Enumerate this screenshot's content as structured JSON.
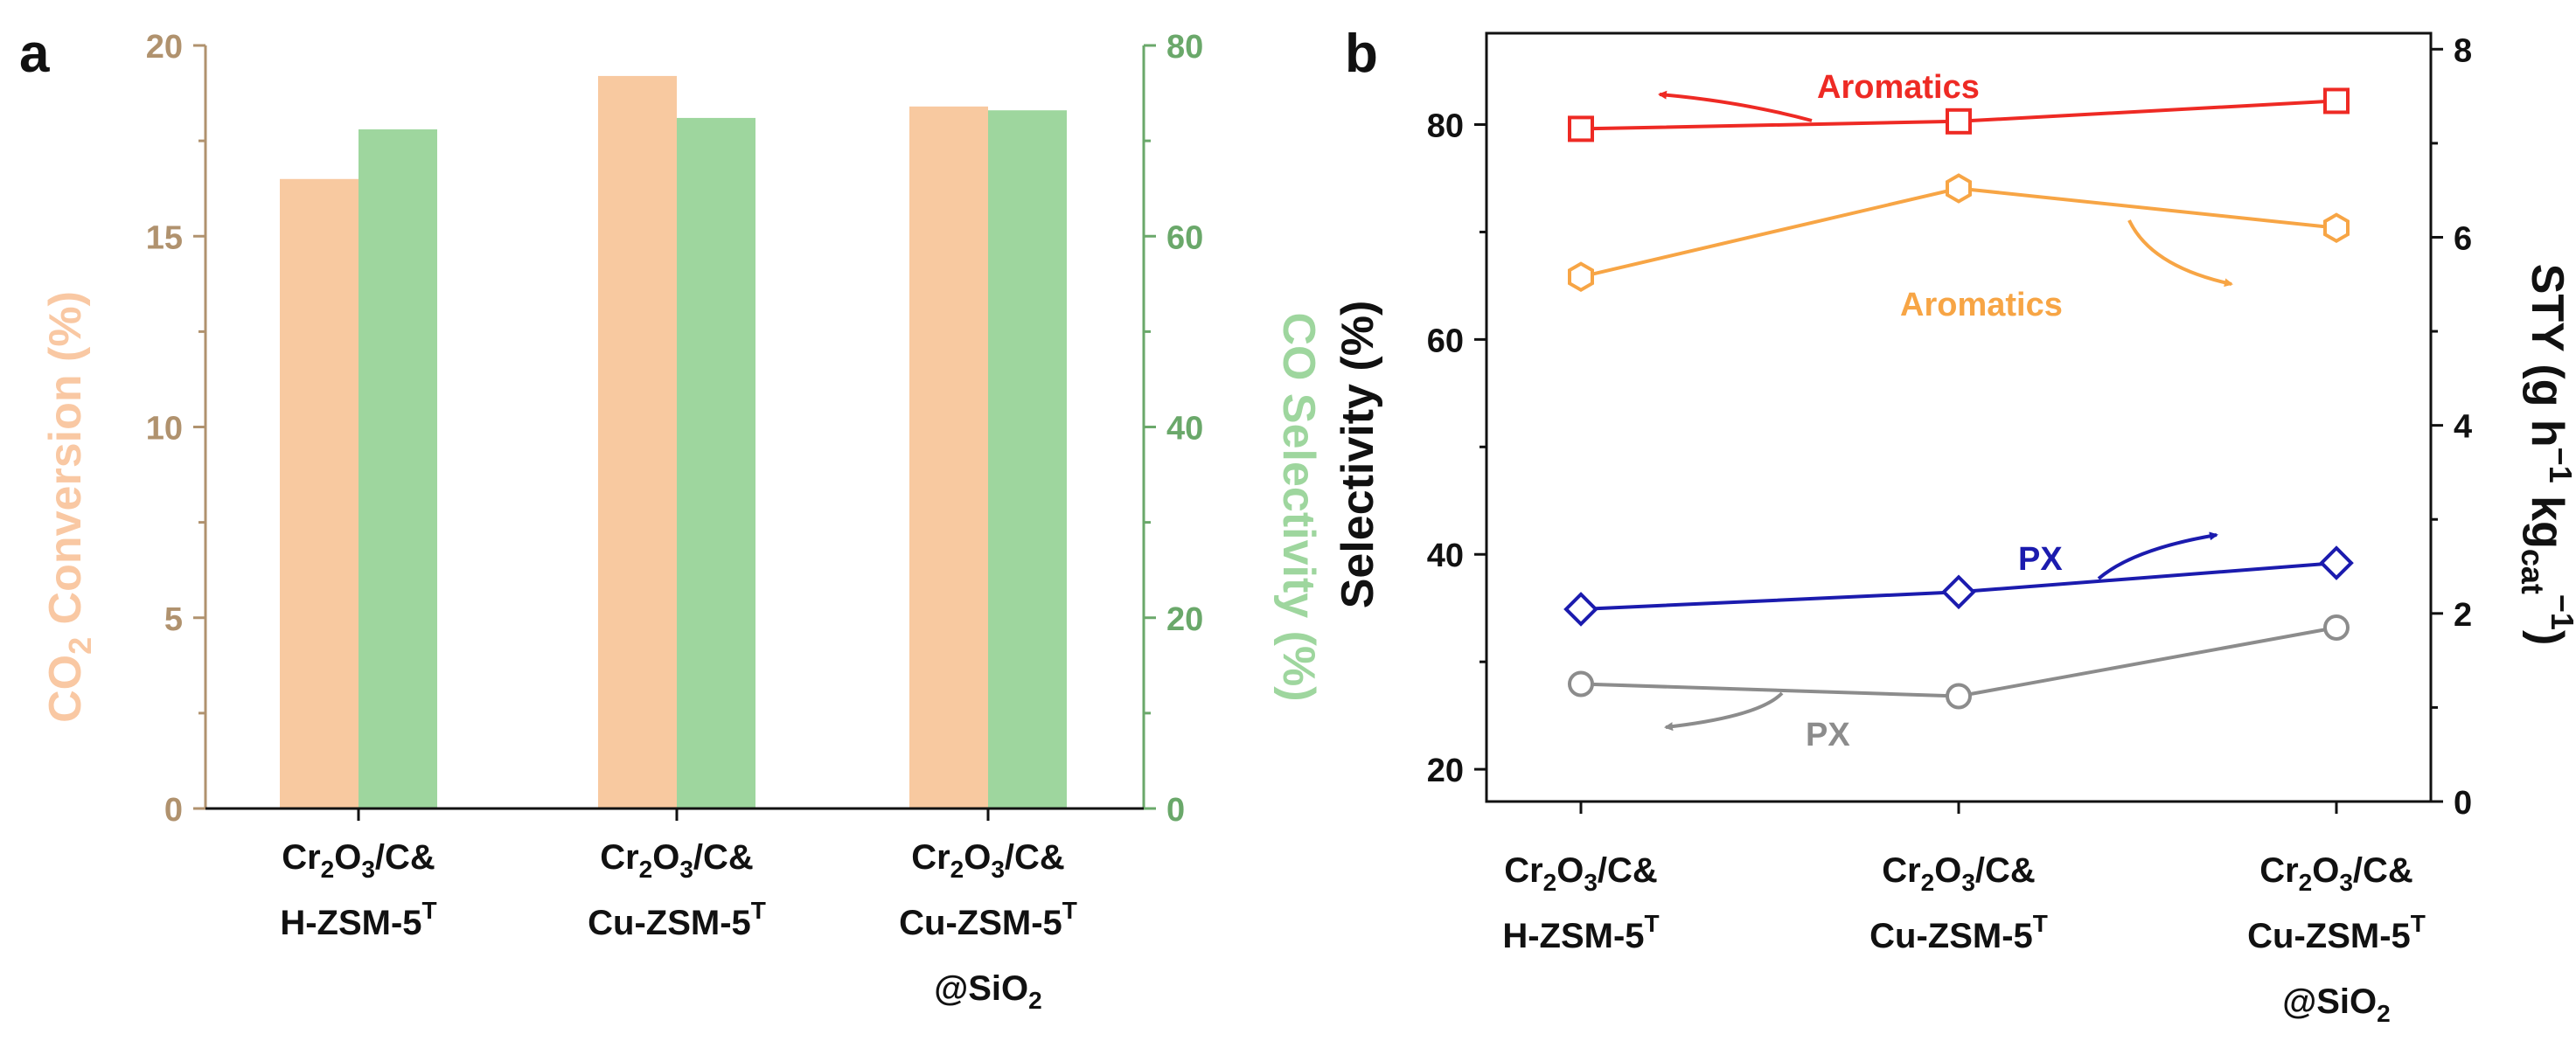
{
  "chart_data": [
    {
      "panel": "a",
      "type": "bar",
      "categories": [
        [
          "Cr2O3/C&",
          "H-ZSM-5T"
        ],
        [
          "Cr2O3/C&",
          "Cu-ZSM-5T"
        ],
        [
          "Cr2O3/C&",
          "Cu-ZSM-5T",
          "@SiO2"
        ]
      ],
      "series": [
        {
          "name": "CO2 Conversion",
          "axis": "left",
          "color": "#F8C9A0",
          "values": [
            16.5,
            19.2,
            18.4
          ]
        },
        {
          "name": "CO Selectivity",
          "axis": "right",
          "color": "#9ED69E",
          "values": [
            71.2,
            72.4,
            73.2
          ]
        }
      ],
      "ylabel_left": "CO2 Conversion (%)",
      "ylabel_right": "CO Selectivity (%)",
      "ylim_left": [
        0,
        20
      ],
      "ylim_right": [
        0,
        80
      ],
      "yticks_left": [
        0,
        5,
        10,
        15,
        20
      ],
      "yticks_right": [
        0,
        20,
        40,
        60,
        80
      ],
      "left_axis_color": "#B0926E",
      "right_axis_color": "#6AA86A"
    },
    {
      "panel": "b",
      "type": "line",
      "categories": [
        [
          "Cr2O3/C&",
          "H-ZSM-5T"
        ],
        [
          "Cr2O3/C&",
          "Cu-ZSM-5T"
        ],
        [
          "Cr2O3/C&",
          "Cu-ZSM-5T",
          "@SiO2"
        ]
      ],
      "series": [
        {
          "name": "Aromatics",
          "axis": "left",
          "marker": "square",
          "color": "#EE2A24",
          "values": [
            79.6,
            80.3,
            82.2
          ]
        },
        {
          "name": "PX",
          "axis": "left",
          "marker": "diamond",
          "color": "#1B1BAE",
          "values": [
            34.9,
            36.5,
            39.2
          ]
        },
        {
          "name": "Aromatics",
          "axis": "right",
          "marker": "hexagon",
          "color": "#F7A545",
          "values": [
            5.58,
            6.52,
            6.1
          ]
        },
        {
          "name": "PX",
          "axis": "right",
          "marker": "circle",
          "color": "#8C8C8C",
          "values": [
            1.25,
            1.12,
            1.85
          ]
        }
      ],
      "ylabel_left": "Selectivity (%)",
      "ylabel_right": "STY (g h−1 kgcat−1)",
      "ylim_left": [
        17,
        88.5
      ],
      "ylim_right": [
        0,
        8.17
      ],
      "yticks_left": [
        20,
        40,
        60,
        80
      ],
      "yticks_right": [
        0,
        2,
        4,
        6,
        8
      ],
      "annotations": [
        {
          "text": "Aromatics",
          "color": "#EE2A24"
        },
        {
          "text": "Aromatics",
          "color": "#F7A545"
        },
        {
          "text": "PX",
          "color": "#1B1BAE"
        },
        {
          "text": "PX",
          "color": "#8C8C8C"
        }
      ]
    }
  ],
  "labels": {
    "panel_a": "a",
    "panel_b": "b",
    "cr2o3_prefix": "Cr",
    "cr2o3_sub1": "2",
    "cr2o3_mid": "O",
    "cr2o3_sub2": "3",
    "cr2o3_suffix": "/C&",
    "cat1": "H-ZSM-5",
    "cat2": "Cu-ZSM-5",
    "sup_T": "T",
    "sio2_prefix": "@SiO",
    "sio2_sub": "2",
    "a_left_label_1": "CO",
    "a_left_label_sub": "2",
    "a_left_label_2": " Conversion (%)",
    "a_right_label": "CO Selectivity (%)",
    "b_left_label": "Selectivity (%)",
    "b_right_1": "STY (g h",
    "b_right_sup1": "−1",
    "b_right_2": " kg",
    "b_right_sub": "cat",
    "b_right_sup2": "−1",
    "b_right_3": ")"
  }
}
